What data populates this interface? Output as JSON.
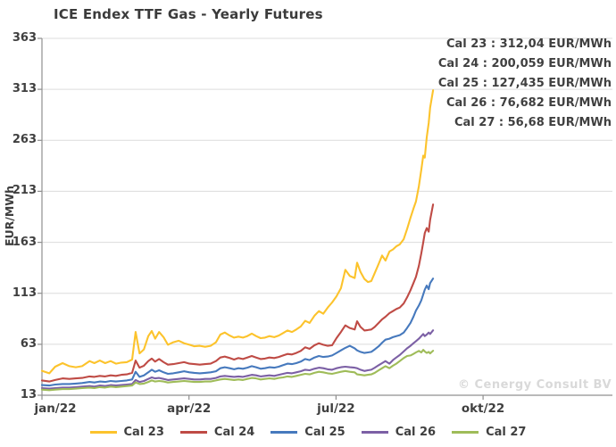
{
  "title": "ICE Endex TTF Gas - Yearly Futures",
  "watermark": "© Cenergy Consult BV",
  "chart_data": {
    "type": "line",
    "title": "ICE Endex TTF Gas - Yearly Futures",
    "xlabel": "",
    "ylabel": "EUR/MWh",
    "ylim": [
      13,
      363
    ],
    "yticks": [
      363,
      313,
      263,
      213,
      163,
      113,
      63,
      13
    ],
    "grid": "horizontal",
    "legend_position": "bottom",
    "xticks": [
      {
        "m": 0,
        "label": "jan/22"
      },
      {
        "m": 3,
        "label": "apr/22"
      },
      {
        "m": 6,
        "label": "jul/22"
      },
      {
        "m": 9,
        "label": "okt/22"
      }
    ],
    "annotations": [
      "Cal 23 : 312,04 EUR/MWh",
      "Cal 24 : 200,059 EUR/MWh",
      "Cal 25 : 127,435 EUR/MWh",
      "Cal 26 : 76,682 EUR/MWh",
      "Cal 27 : 56,68 EUR/MWh"
    ],
    "x_months": [
      0.0,
      0.15,
      0.27,
      0.42,
      0.56,
      0.69,
      0.82,
      0.97,
      1.07,
      1.18,
      1.29,
      1.4,
      1.51,
      1.62,
      1.73,
      1.84,
      1.91,
      1.99,
      2.08,
      2.17,
      2.24,
      2.31,
      2.39,
      2.48,
      2.57,
      2.68,
      2.79,
      2.9,
      3.01,
      3.11,
      3.22,
      3.33,
      3.44,
      3.55,
      3.64,
      3.73,
      3.83,
      3.92,
      4.01,
      4.1,
      4.19,
      4.28,
      4.37,
      4.46,
      4.55,
      4.64,
      4.74,
      4.83,
      4.92,
      5.01,
      5.1,
      5.19,
      5.28,
      5.37,
      5.46,
      5.56,
      5.65,
      5.74,
      5.83,
      5.92,
      6.01,
      6.1,
      6.19,
      6.28,
      6.38,
      6.43,
      6.5,
      6.58,
      6.65,
      6.72,
      6.79,
      6.87,
      6.94,
      7.01,
      7.09,
      7.16,
      7.23,
      7.3,
      7.38,
      7.45,
      7.52,
      7.58,
      7.63,
      7.69,
      7.74,
      7.78,
      7.81,
      7.85,
      7.89,
      7.92,
      7.98
    ],
    "series": [
      {
        "name": "Cal 23",
        "color": "#FCC32C",
        "final_value": "312,04",
        "values": [
          37,
          34.5,
          41,
          44.5,
          41.5,
          40.5,
          41.5,
          46.5,
          44.5,
          47,
          44.5,
          46.5,
          44,
          45,
          45.5,
          48,
          75,
          54,
          58,
          71,
          76,
          68.5,
          75,
          70,
          62.5,
          65,
          66.5,
          64,
          62.5,
          61,
          61.5,
          60.5,
          61.5,
          65,
          72.5,
          74.5,
          71.5,
          69.5,
          70.5,
          69.5,
          71,
          73.5,
          71,
          69,
          69.5,
          71,
          70,
          71.5,
          74,
          76.5,
          75,
          77.5,
          80.5,
          86,
          84,
          91,
          95.5,
          93,
          99,
          104,
          110,
          118,
          136,
          130,
          128,
          143,
          134,
          127,
          124,
          125,
          133,
          142,
          150,
          145,
          154,
          156,
          159,
          161,
          166,
          176,
          187,
          196,
          203,
          218,
          234,
          248,
          246,
          266,
          280,
          295,
          312.04
        ]
      },
      {
        "name": "Cal 24",
        "color": "#BF4B45",
        "final_value": "200,059",
        "values": [
          27.5,
          26.5,
          28,
          29.5,
          29,
          29.5,
          30,
          31.5,
          31,
          32,
          31.5,
          32.5,
          32,
          33,
          33.5,
          35,
          47,
          40,
          42,
          46.5,
          49,
          46,
          48.5,
          45.5,
          43,
          43.5,
          44.5,
          45.5,
          44,
          43.5,
          43,
          43.5,
          44,
          46.5,
          50,
          51,
          49.5,
          48,
          49.5,
          48.5,
          50,
          51.5,
          50,
          48.5,
          49,
          50,
          49.5,
          50.5,
          52,
          53.5,
          53,
          54.5,
          56.5,
          60,
          58.5,
          62,
          64,
          62.5,
          61.5,
          62,
          69,
          75,
          81.5,
          79,
          77.5,
          85.5,
          80,
          76.5,
          77,
          77.5,
          80,
          84,
          87.5,
          90,
          93.5,
          95.5,
          97.5,
          99,
          103,
          109,
          116,
          123,
          129,
          140,
          152,
          163,
          172,
          177,
          173.5,
          185,
          200.059
        ]
      },
      {
        "name": "Cal 25",
        "color": "#4679BD",
        "final_value": "127,435",
        "values": [
          23,
          22.5,
          23.5,
          24,
          24,
          24.5,
          25,
          26,
          25.5,
          26.5,
          26,
          27,
          26.5,
          27,
          27.5,
          28.5,
          36,
          31,
          32.5,
          35.5,
          38,
          36,
          37.5,
          35.5,
          34,
          34.5,
          35.5,
          36.5,
          35.5,
          35,
          34.5,
          35,
          35.5,
          36.5,
          39.5,
          40.5,
          39.5,
          38.5,
          39.5,
          39,
          40,
          41.5,
          40.5,
          39,
          39.5,
          40.5,
          40,
          41,
          42.5,
          44,
          43.5,
          44.5,
          46,
          48.5,
          47.5,
          50,
          51.5,
          50.5,
          51,
          52,
          54.5,
          57,
          59.5,
          61.5,
          59,
          57,
          55.5,
          54.5,
          55,
          55.5,
          58,
          61,
          64.5,
          67.5,
          68.5,
          70,
          71,
          72,
          74.5,
          79,
          84,
          90,
          96,
          101,
          106,
          112,
          116.5,
          120.5,
          117,
          123,
          127.435
        ]
      },
      {
        "name": "Cal 26",
        "color": "#7C60A5",
        "final_value": "76,682",
        "values": [
          20,
          19.5,
          20,
          20.5,
          20.5,
          21,
          21.5,
          22,
          21.5,
          22.5,
          22,
          23,
          22.5,
          23,
          23.5,
          24,
          28,
          26,
          27,
          29,
          30.5,
          29.5,
          30,
          29,
          28,
          28.5,
          29,
          29.5,
          29,
          28.5,
          28.5,
          29,
          29,
          30,
          31.5,
          32,
          31.5,
          31,
          31.5,
          31,
          32,
          33,
          32.5,
          31.5,
          32,
          32.5,
          32,
          33,
          34,
          35,
          34.5,
          35.5,
          36.5,
          38,
          37.5,
          39,
          40,
          39.5,
          38.5,
          38,
          39.5,
          40.5,
          41,
          40.5,
          40,
          39.5,
          38,
          36.8,
          37.5,
          38,
          40,
          42.5,
          44.5,
          46.5,
          44,
          47.5,
          50,
          52.5,
          56,
          59,
          61.5,
          64,
          66,
          68.5,
          71,
          73,
          71,
          72.5,
          74.5,
          73,
          76.682
        ]
      },
      {
        "name": "Cal 27",
        "color": "#9FBC59",
        "final_value": "56,68",
        "values": [
          18.5,
          18,
          18.5,
          19,
          19,
          19.5,
          20,
          20.5,
          20,
          21,
          20.5,
          21.5,
          21,
          21.5,
          22,
          22.5,
          25.5,
          24,
          24.5,
          26,
          27.5,
          26.5,
          27,
          26.5,
          25.5,
          26,
          26.5,
          27,
          26.5,
          26,
          26,
          26.5,
          26.5,
          27.5,
          28.5,
          29,
          28.5,
          28,
          28.5,
          28,
          29,
          30,
          29.5,
          28.5,
          29,
          29.5,
          29,
          30,
          30.5,
          31.5,
          31,
          32,
          33,
          34,
          33.5,
          35,
          36,
          35.5,
          34.5,
          34,
          35,
          36,
          36.8,
          36,
          35.5,
          33.5,
          33,
          32.5,
          33,
          33.5,
          35,
          37.5,
          39.5,
          41.5,
          39.5,
          42,
          44,
          46.5,
          49.5,
          51.5,
          52,
          53.5,
          55,
          56.5,
          55,
          57.5,
          56,
          54.5,
          55.5,
          54,
          56.68
        ]
      }
    ],
    "colors": {
      "axis": "#8f8f8f",
      "grid": "#dcdcdc",
      "text": "#3f3f3f",
      "watermark": "#d9d9d9"
    }
  }
}
